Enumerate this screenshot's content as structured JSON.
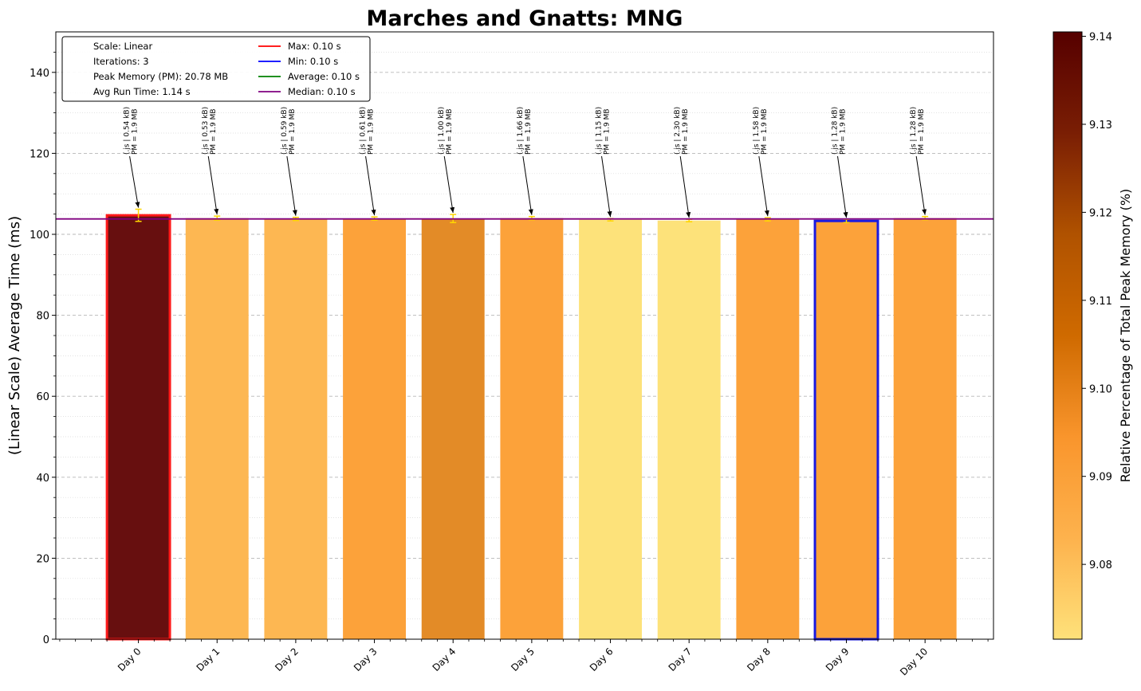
{
  "chart_data": {
    "type": "bar",
    "title": "Marches and Gnatts: MNG",
    "xlabel": "",
    "ylabel": "(Linear Scale) Average Time (ms)",
    "ylim": [
      0,
      150
    ],
    "yticks": [
      0,
      20,
      40,
      60,
      80,
      100,
      120,
      140
    ],
    "grid": true,
    "categories": [
      "Day 0",
      "Day 1",
      "Day 2",
      "Day 3",
      "Day 4",
      "Day 5",
      "Day 6",
      "Day 7",
      "Day 8",
      "Day 9",
      "Day 10"
    ],
    "values": [
      104.7,
      104.0,
      103.8,
      103.9,
      103.9,
      104.0,
      103.6,
      103.4,
      103.7,
      103.3,
      104.0
    ],
    "errors": [
      1.5,
      0.5,
      0.4,
      0.4,
      1.0,
      0.4,
      0.3,
      0.3,
      0.4,
      0.4,
      0.4
    ],
    "peak_memory_pct": [
      9.1395,
      9.085,
      9.085,
      9.09,
      9.098,
      9.09,
      9.075,
      9.075,
      9.09,
      9.09,
      9.09
    ],
    "bar_colors": [
      "#670f0f",
      "#fdb752",
      "#fdb752",
      "#fca23a",
      "#e38b27",
      "#fca23a",
      "#fde27a",
      "#fde27a",
      "#fca23a",
      "#fca23a",
      "#fca23a"
    ],
    "annotations": [
      [
        "(.js | 0.54 kB)",
        "PM = 1.9 MB"
      ],
      [
        "(.js | 0.53 kB)",
        "PM = 1.9 MB"
      ],
      [
        "(.js | 0.59 kB)",
        "PM = 1.9 MB"
      ],
      [
        "(.js | 0.61 kB)",
        "PM = 1.9 MB"
      ],
      [
        "(.js | 1.00 kB)",
        "PM = 1.9 MB"
      ],
      [
        "(.js | 1.66 kB)",
        "PM = 1.9 MB"
      ],
      [
        "(.js | 1.15 kB)",
        "PM = 1.9 MB"
      ],
      [
        "(.js | 2.30 kB)",
        "PM = 1.9 MB"
      ],
      [
        "(.js | 1.58 kB)",
        "PM = 1.9 MB"
      ],
      [
        "(.js | 1.28 kB)",
        "PM = 1.9 MB"
      ],
      [
        "(.js | 1.28 kB)",
        "PM = 1.9 MB"
      ]
    ],
    "max_index": 0,
    "min_index": 9,
    "max_outline_color": "#ff1a1a",
    "min_outline_color": "#1a1adf",
    "median_line_value": 103.8,
    "median_line_color": "#800080",
    "errorbar_color": "#ffd700",
    "legend": {
      "placement": "top-left",
      "info": [
        "Scale: Linear",
        "Iterations: 3",
        "Peak Memory (PM): 20.78 MB",
        "Avg Run Time: 1.14 s"
      ],
      "lines": [
        {
          "label": "Max: 0.10 s",
          "color": "#ff0000"
        },
        {
          "label": "Min: 0.10 s",
          "color": "#0000ff"
        },
        {
          "label": "Average: 0.10 s",
          "color": "#008000"
        },
        {
          "label": "Median: 0.10 s",
          "color": "#800080"
        }
      ]
    },
    "colorbar": {
      "label": "Relative Percentage of Total Peak Memory (%)",
      "range": [
        9.0715,
        9.1405
      ],
      "ticks": [
        9.08,
        9.09,
        9.1,
        9.11,
        9.12,
        9.13,
        9.14
      ],
      "tick_labels": [
        "9.08",
        "9.09",
        "9.10",
        "9.11",
        "9.12",
        "9.13",
        "9.14"
      ],
      "colors": [
        "#fee17a",
        "#fdb24d",
        "#f9952c",
        "#cf6a00",
        "#b05200",
        "#7a1e04",
        "#560000"
      ]
    }
  }
}
